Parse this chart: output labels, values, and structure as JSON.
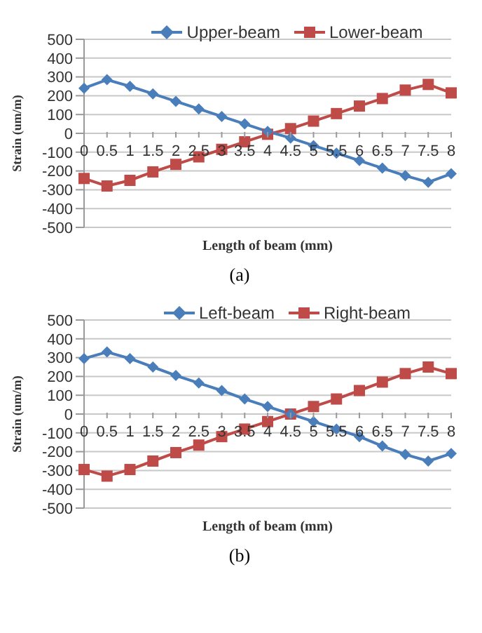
{
  "chart_data": [
    {
      "type": "line",
      "categories": [
        "0",
        "0.5",
        "1",
        "1.5",
        "2",
        "2.5",
        "3",
        "3.5",
        "4",
        "4.5",
        "5",
        "5.5",
        "6",
        "6.5",
        "7",
        "7.5",
        "8"
      ],
      "xlabel": "Length of beam (mm)",
      "ylabel": "Strain (um/m)",
      "ylim": [
        -500,
        500
      ],
      "yticks": [
        -500,
        -400,
        -300,
        -200,
        -100,
        0,
        100,
        200,
        300,
        400,
        500
      ],
      "grid": "y",
      "legend": "top",
      "annotations": [
        "(a)"
      ],
      "series": [
        {
          "name": "Upper-beam",
          "color": "#4a7ebb",
          "marker": "diamond",
          "values": [
            240,
            285,
            250,
            210,
            170,
            130,
            90,
            50,
            10,
            -25,
            -65,
            -105,
            -145,
            -185,
            -225,
            -260,
            -215
          ]
        },
        {
          "name": "Lower-beam",
          "color": "#be4b48",
          "marker": "square",
          "values": [
            -240,
            -280,
            -250,
            -205,
            -165,
            -125,
            -85,
            -45,
            -5,
            25,
            65,
            105,
            145,
            185,
            230,
            260,
            215
          ]
        }
      ]
    },
    {
      "type": "line",
      "categories": [
        "0",
        "0.5",
        "1",
        "1.5",
        "2",
        "2.5",
        "3",
        "3.5",
        "4",
        "4.5",
        "5",
        "5.5",
        "6",
        "6.5",
        "7",
        "7.5",
        "8"
      ],
      "xlabel": "Length of beam (mm)",
      "ylabel": "Strain (um/m)",
      "ylim": [
        -500,
        500
      ],
      "yticks": [
        -500,
        -400,
        -300,
        -200,
        -100,
        0,
        100,
        200,
        300,
        400,
        500
      ],
      "grid": "y",
      "legend": "top",
      "annotations": [
        "(b)"
      ],
      "series": [
        {
          "name": "Left-beam",
          "color": "#4a7ebb",
          "marker": "diamond",
          "values": [
            295,
            330,
            295,
            250,
            205,
            165,
            125,
            80,
            40,
            0,
            -40,
            -80,
            -120,
            -170,
            -215,
            -250,
            -210
          ]
        },
        {
          "name": "Right-beam",
          "color": "#be4b48",
          "marker": "square",
          "values": [
            -295,
            -330,
            -295,
            -250,
            -205,
            -165,
            -120,
            -80,
            -40,
            0,
            40,
            80,
            125,
            170,
            215,
            250,
            215
          ]
        }
      ]
    }
  ]
}
